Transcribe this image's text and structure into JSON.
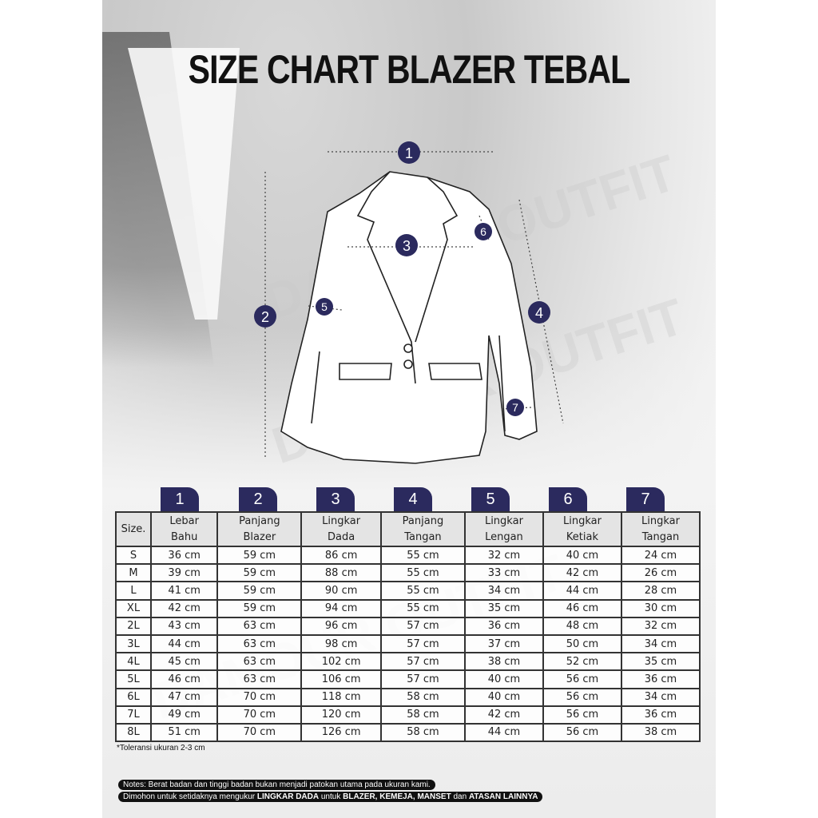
{
  "title": "SIZE CHART BLAZER TEBAL",
  "watermark": "DAMOUR OUTFIT",
  "accent_color": "#2b2a5e",
  "diagram_markers": [
    "1",
    "2",
    "3",
    "4",
    "5",
    "6",
    "7"
  ],
  "table": {
    "size_header": "Size.",
    "columns": [
      {
        "num": "1",
        "line1": "Lebar",
        "line2": "Bahu"
      },
      {
        "num": "2",
        "line1": "Panjang",
        "line2": "Blazer"
      },
      {
        "num": "3",
        "line1": "Lingkar",
        "line2": "Dada"
      },
      {
        "num": "4",
        "line1": "Panjang",
        "line2": "Tangan"
      },
      {
        "num": "5",
        "line1": "Lingkar",
        "line2": "Lengan"
      },
      {
        "num": "6",
        "line1": "Lingkar",
        "line2": "Ketiak"
      },
      {
        "num": "7",
        "line1": "Lingkar",
        "line2": "Tangan"
      }
    ],
    "rows": [
      [
        "S",
        "36 cm",
        "59 cm",
        "86 cm",
        "55 cm",
        "32 cm",
        "40 cm",
        "24 cm"
      ],
      [
        "M",
        "39 cm",
        "59 cm",
        "88 cm",
        "55 cm",
        "33 cm",
        "42 cm",
        "26 cm"
      ],
      [
        "L",
        "41 cm",
        "59 cm",
        "90 cm",
        "55 cm",
        "34 cm",
        "44 cm",
        "28 cm"
      ],
      [
        "XL",
        "42 cm",
        "59 cm",
        "94 cm",
        "55 cm",
        "35 cm",
        "46 cm",
        "30 cm"
      ],
      [
        "2L",
        "43 cm",
        "63 cm",
        "96 cm",
        "57 cm",
        "36 cm",
        "48 cm",
        "32 cm"
      ],
      [
        "3L",
        "44 cm",
        "63 cm",
        "98 cm",
        "57 cm",
        "37 cm",
        "50 cm",
        "34 cm"
      ],
      [
        "4L",
        "45 cm",
        "63 cm",
        "102 cm",
        "57 cm",
        "38 cm",
        "52 cm",
        "35 cm"
      ],
      [
        "5L",
        "46 cm",
        "63 cm",
        "106 cm",
        "57 cm",
        "40 cm",
        "56 cm",
        "36 cm"
      ],
      [
        "6L",
        "47 cm",
        "70 cm",
        "118 cm",
        "58 cm",
        "40 cm",
        "56 cm",
        "34 cm"
      ],
      [
        "7L",
        "49 cm",
        "70 cm",
        "120 cm",
        "58 cm",
        "42 cm",
        "56 cm",
        "36 cm"
      ],
      [
        "8L",
        "51 cm",
        "70 cm",
        "126 cm",
        "58 cm",
        "44 cm",
        "56 cm",
        "38 cm"
      ]
    ]
  },
  "tolerance": "*Toleransi ukuran 2-3 cm",
  "notes": {
    "line1": "Notes: Berat badan dan tinggi badan bukan menjadi patokan utama pada ukuran kami.",
    "line2_parts": [
      "Dimohon untuk setidaknya mengukur ",
      "LINGKAR DADA",
      " untuk ",
      "BLAZER, KEMEJA, MANSET",
      " dan ",
      "ATASAN LAINNYA"
    ]
  }
}
